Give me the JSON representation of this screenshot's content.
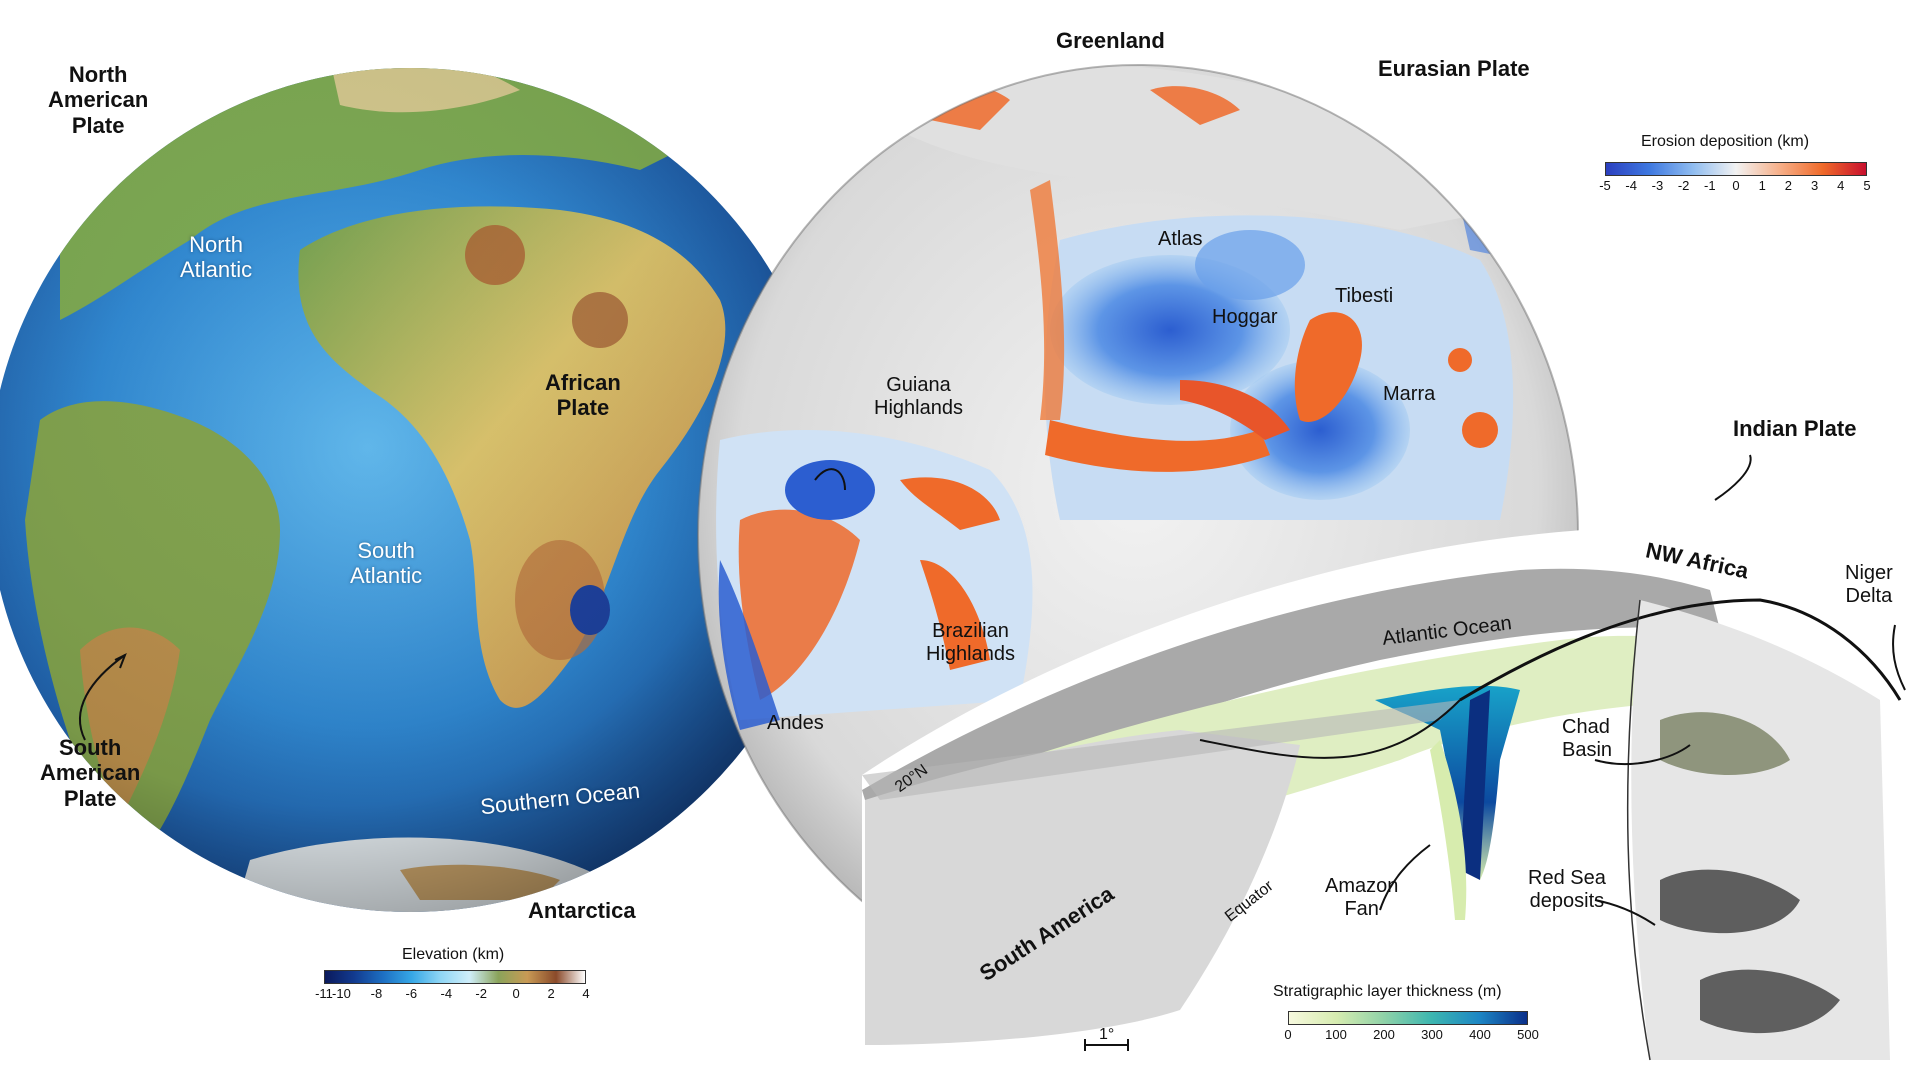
{
  "left_globe": {
    "plates": {
      "north_american": "North\nAmerican\nPlate",
      "african": "African\nPlate",
      "south_american": "South\nAmerican\nPlate"
    },
    "oceans": {
      "north_atlantic": "North\nAtlantic",
      "south_atlantic": "South\nAtlantic",
      "southern_ocean": "Southern Ocean"
    },
    "antarctica": "Antarctica",
    "legend": {
      "title": "Elevation (km)",
      "ticks": [
        "-11",
        "-10",
        "-8",
        "-6",
        "-4",
        "-2",
        "0",
        "2",
        "4"
      ],
      "colors": [
        "#0b1a5c",
        "#123a8f",
        "#1d6fc2",
        "#36a7e6",
        "#8fd6f5",
        "#cfeefa",
        "#8aa35a",
        "#c89a55",
        "#8a4a2a",
        "#ffffff"
      ]
    }
  },
  "right_globe": {
    "plates": {
      "greenland": "Greenland",
      "eurasian": "Eurasian Plate",
      "indian": "Indian Plate"
    },
    "regions": {
      "atlas": "Atlas",
      "hoggar": "Hoggar",
      "tibesti": "Tibesti",
      "marra": "Marra",
      "guiana": "Guiana\nHighlands",
      "brazilian": "Brazilian\nHighlands",
      "andes": "Andes"
    },
    "legend": {
      "title": "Erosion deposition (km)",
      "ticks": [
        "-5",
        "-4",
        "-3",
        "-2",
        "-1",
        "0",
        "1",
        "2",
        "3",
        "4",
        "5"
      ],
      "colors": [
        "#2b3fbf",
        "#3e78e0",
        "#8fbcf0",
        "#f2f2f2",
        "#f6b08a",
        "#ef6a2a",
        "#c8102e"
      ]
    }
  },
  "section": {
    "nw_africa": "NW Africa",
    "atlantic_ocean": "Atlantic Ocean",
    "niger_delta": "Niger\nDelta",
    "chad_basin": "Chad\nBasin",
    "red_sea": "Red Sea\ndeposits",
    "amazon_fan": "Amazon\nFan",
    "south_america": "South America",
    "equator": "Equator",
    "lat_20n": "20°N",
    "scale": "1°",
    "legend": {
      "title": "Stratigraphic layer thickness (m)",
      "ticks": [
        "0",
        "100",
        "200",
        "300",
        "400",
        "500"
      ],
      "colors": [
        "#f7f9de",
        "#d6ecb0",
        "#8fd2a8",
        "#3cb6b0",
        "#1d86c4",
        "#0a2f8a"
      ]
    }
  }
}
